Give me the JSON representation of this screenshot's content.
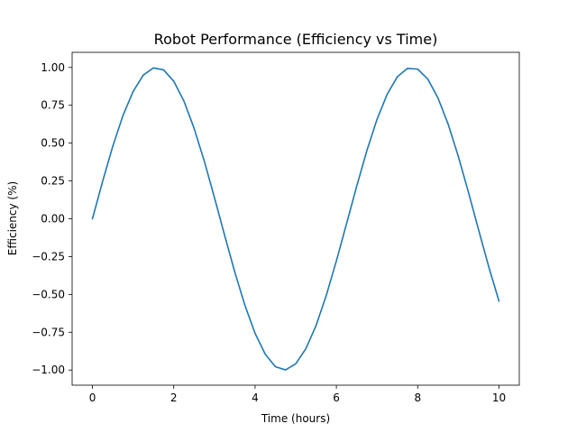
{
  "chart_data": {
    "type": "line",
    "title": "Robot Performance (Efficiency vs Time)",
    "xlabel": "Time (hours)",
    "ylabel": "Efficiency (%)",
    "xlim": [
      -0.5,
      10.5
    ],
    "ylim": [
      -1.1,
      1.1
    ],
    "x_ticks": [
      0,
      2,
      4,
      6,
      8,
      10
    ],
    "x_tick_labels": [
      "0",
      "2",
      "4",
      "6",
      "8",
      "10"
    ],
    "y_ticks": [
      -1.0,
      -0.75,
      -0.5,
      -0.25,
      0.0,
      0.25,
      0.5,
      0.75,
      1.0
    ],
    "y_tick_labels": [
      "−1.00",
      "−0.75",
      "−0.50",
      "−0.25",
      "0.00",
      "0.25",
      "0.50",
      "0.75",
      "1.00"
    ],
    "grid": false,
    "series": [
      {
        "color": "#1f77b4",
        "x": [
          0,
          0.25,
          0.5,
          0.75,
          1.0,
          1.25,
          1.5,
          1.75,
          2.0,
          2.25,
          2.5,
          2.75,
          3.0,
          3.25,
          3.5,
          3.75,
          4.0,
          4.25,
          4.5,
          4.75,
          5.0,
          5.25,
          5.5,
          5.75,
          6.0,
          6.25,
          6.5,
          6.75,
          7.0,
          7.25,
          7.5,
          7.75,
          8.0,
          8.25,
          8.5,
          8.75,
          9.0,
          9.25,
          9.5,
          9.75,
          10.0
        ],
        "y": [
          0.0,
          0.247,
          0.479,
          0.682,
          0.841,
          0.949,
          0.997,
          0.984,
          0.909,
          0.778,
          0.598,
          0.382,
          0.141,
          -0.108,
          -0.351,
          -0.572,
          -0.757,
          -0.895,
          -0.978,
          -0.999,
          -0.959,
          -0.859,
          -0.706,
          -0.508,
          -0.279,
          -0.033,
          0.215,
          0.45,
          0.657,
          0.823,
          0.938,
          0.994,
          0.989,
          0.923,
          0.798,
          0.625,
          0.412,
          0.174,
          -0.075,
          -0.319,
          -0.544
        ]
      }
    ]
  }
}
